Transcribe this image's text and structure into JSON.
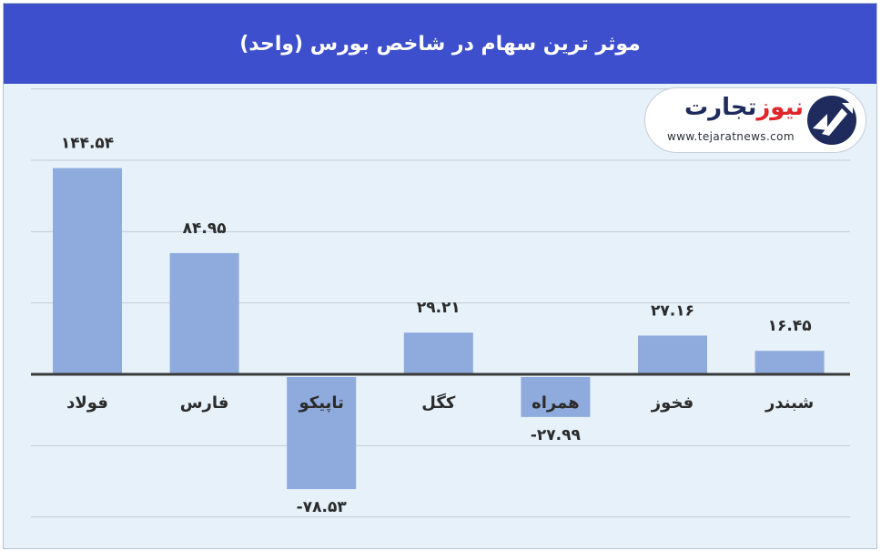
{
  "title": "موثر ترین سهام در شاخص بورس (واحد)",
  "logo": {
    "name_red": "نیوز",
    "name_dark": "تجارت",
    "url": "www.tejaratnews.com"
  },
  "colors": {
    "title_bar": "#3d4fcd",
    "plot_bg": "#e6f1f9",
    "bar": "#8faadc",
    "axis": "#3a3a3a",
    "gridline": "#c4ccd6"
  },
  "chart_data": {
    "type": "bar",
    "categories": [
      "فولاد",
      "فارس",
      "تاپیکو",
      "کگل",
      "همراه",
      "فخوز",
      "شبندر"
    ],
    "values": [
      144.54,
      84.95,
      -78.53,
      29.21,
      -27.99,
      27.16,
      16.45
    ],
    "value_labels": [
      "۱۴۴.۵۴",
      "۸۴.۹۵",
      "-۷۸.۵۳",
      "۲۹.۲۱",
      "-۲۷.۹۹",
      "۲۷.۱۶",
      "۱۶.۴۵"
    ],
    "ylim": [
      -100,
      200
    ],
    "grid": true,
    "legend": "none"
  }
}
